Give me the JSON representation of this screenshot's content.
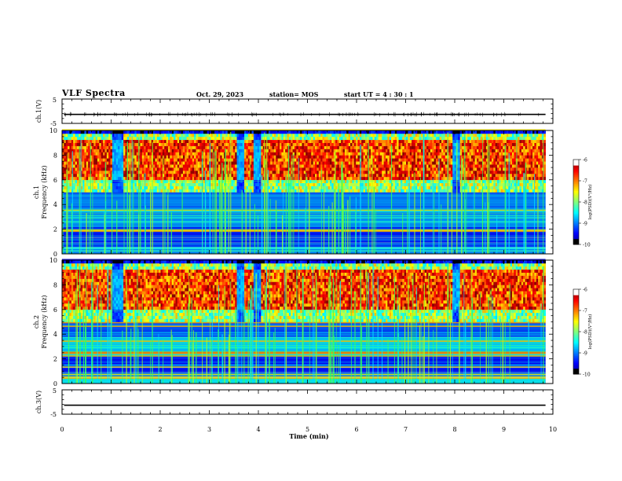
{
  "header": {
    "title": "VLF Spectra",
    "date": "Oct. 29, 2023",
    "station": "station= MOS",
    "start_ut": "start  UT =   4 : 30 : 1"
  },
  "chart_data": [
    {
      "type": "line",
      "name": "ch1-waveform",
      "ylabel": "ch.1(V)",
      "yticks": [
        "5",
        "-5"
      ],
      "ylim": [
        -5,
        5
      ],
      "xlim": [
        0,
        10
      ],
      "level": -1.3
    },
    {
      "type": "heatmap",
      "name": "ch1-spectrogram",
      "ylabel": "ch.1\nFrequency (kHz)",
      "ylabel_lines": [
        "ch.1",
        "Frequency (kHz)"
      ],
      "yticks": [
        0,
        2,
        4,
        6,
        8,
        10
      ],
      "ylim": [
        0,
        10
      ],
      "xlim": [
        0,
        10
      ],
      "data_end_min": 9.85,
      "colorbar": {
        "label": "log(PSD)(V²/Hz)",
        "ticks": [
          "-6",
          "-7",
          "-8",
          "-9",
          "-10"
        ],
        "range": [
          -10,
          -6
        ]
      }
    },
    {
      "type": "heatmap",
      "name": "ch2-spectrogram",
      "ylabel": "ch.2\nFrequency (kHz)",
      "ylabel_lines": [
        "ch.2",
        "Frequency (kHz)"
      ],
      "yticks": [
        0,
        2,
        4,
        6,
        8,
        10
      ],
      "ylim": [
        0,
        10
      ],
      "xlim": [
        0,
        10
      ],
      "data_end_min": 9.85,
      "colorbar": {
        "label": "log(PSD)(V²/Hz)",
        "ticks": [
          "-6",
          "-7",
          "-8",
          "-9",
          "-10"
        ],
        "range": [
          -10,
          -6
        ]
      }
    },
    {
      "type": "line",
      "name": "ch3-waveform",
      "ylabel": "ch.3(V)",
      "yticks": [
        "5",
        "-5"
      ],
      "ylim": [
        -5,
        5
      ],
      "xlim": [
        0,
        10
      ],
      "level": -1.3,
      "xlabel": "Time  (min)",
      "xticks": [
        0,
        1,
        2,
        3,
        4,
        5,
        6,
        7,
        8,
        9,
        10
      ]
    }
  ]
}
